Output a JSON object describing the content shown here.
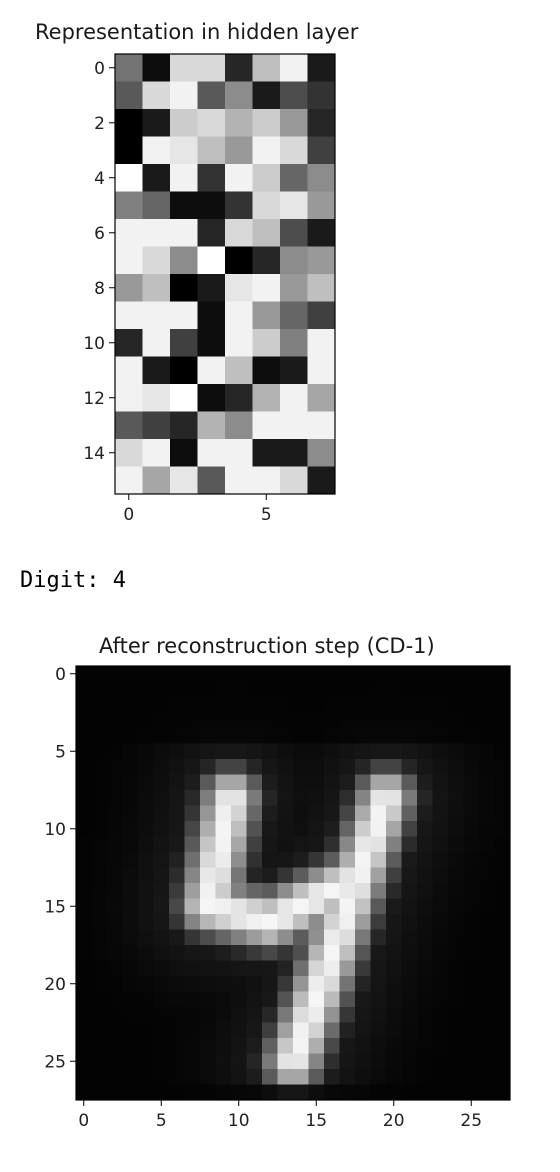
{
  "output_text": "Digit: 4",
  "chart_data": [
    {
      "type": "heatmap",
      "title": "Representation in hidden layer",
      "colormap": "gray",
      "rows": 16,
      "cols": 8,
      "x_ticks": [
        0,
        5
      ],
      "y_ticks": [
        0,
        2,
        4,
        6,
        8,
        10,
        12,
        14
      ],
      "values": [
        [
          0.45,
          0.05,
          0.85,
          0.85,
          0.15,
          0.75,
          0.95,
          0.1
        ],
        [
          0.35,
          0.85,
          0.95,
          0.35,
          0.55,
          0.1,
          0.3,
          0.2
        ],
        [
          0.0,
          0.1,
          0.8,
          0.85,
          0.7,
          0.8,
          0.6,
          0.15
        ],
        [
          0.0,
          0.95,
          0.9,
          0.75,
          0.6,
          0.95,
          0.85,
          0.25
        ],
        [
          1.0,
          0.1,
          0.95,
          0.2,
          0.95,
          0.8,
          0.4,
          0.55
        ],
        [
          0.5,
          0.4,
          0.05,
          0.05,
          0.2,
          0.85,
          0.9,
          0.6
        ],
        [
          0.95,
          0.95,
          0.95,
          0.15,
          0.85,
          0.75,
          0.3,
          0.1
        ],
        [
          0.95,
          0.85,
          0.55,
          1.0,
          0.0,
          0.15,
          0.55,
          0.6
        ],
        [
          0.6,
          0.75,
          0.0,
          0.1,
          0.9,
          0.95,
          0.6,
          0.75
        ],
        [
          0.95,
          0.95,
          0.95,
          0.05,
          0.95,
          0.6,
          0.4,
          0.25
        ],
        [
          0.15,
          0.95,
          0.25,
          0.05,
          0.95,
          0.8,
          0.5,
          0.95
        ],
        [
          0.95,
          0.1,
          0.0,
          0.95,
          0.75,
          0.05,
          0.1,
          0.95
        ],
        [
          0.95,
          0.9,
          1.0,
          0.05,
          0.15,
          0.7,
          0.95,
          0.65
        ],
        [
          0.35,
          0.25,
          0.15,
          0.7,
          0.55,
          0.95,
          0.95,
          0.95
        ],
        [
          0.85,
          0.95,
          0.05,
          0.95,
          0.95,
          0.1,
          0.1,
          0.55
        ],
        [
          0.95,
          0.65,
          0.9,
          0.35,
          0.95,
          0.95,
          0.85,
          0.1
        ]
      ]
    },
    {
      "type": "heatmap",
      "title": "After reconstruction step (CD-1)",
      "colormap": "gray",
      "rows": 28,
      "cols": 28,
      "x_ticks": [
        0,
        5,
        10,
        15,
        20,
        25
      ],
      "y_ticks": [
        0,
        5,
        10,
        15,
        20,
        25
      ],
      "values": "generated: 28x28 reconstruction of handwritten digit 4 (bright strokes on dark background)",
      "strokes": [
        {
          "from": [
            9.5,
            8.0
          ],
          "to": [
            8.0,
            15.0
          ]
        },
        {
          "from": [
            8.0,
            15.0
          ],
          "to": [
            12.0,
            16.0
          ]
        },
        {
          "from": [
            12.0,
            16.0
          ],
          "to": [
            17.0,
            13.5
          ]
        },
        {
          "from": [
            19.5,
            8.0
          ],
          "to": [
            15.0,
            21.0
          ]
        },
        {
          "from": [
            15.0,
            21.0
          ],
          "to": [
            13.5,
            25.0
          ]
        }
      ]
    }
  ]
}
